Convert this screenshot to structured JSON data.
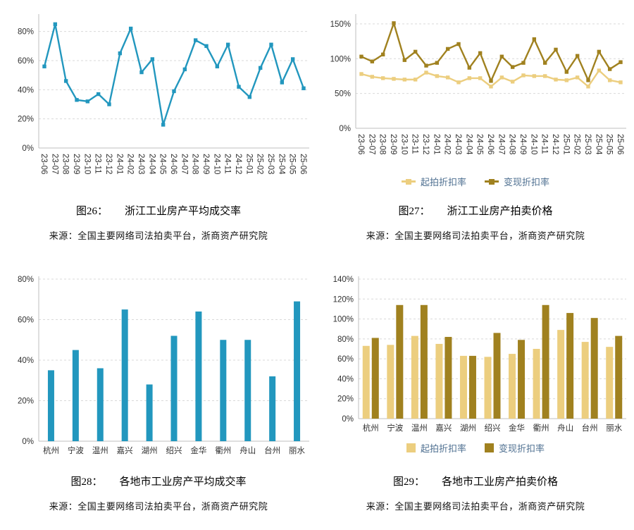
{
  "colors": {
    "teal": "#2297BE",
    "light_gold": "#ECCE7F",
    "dark_gold": "#A0811F",
    "grid_line": "#D9D9D9",
    "axis_line": "#BFBFBF",
    "tick_text": "#303030",
    "legend_text": "#4F7091"
  },
  "figures": [
    {
      "caption_prefix": "图26：",
      "caption_title": "浙江工业房产平均成交率",
      "source_prefix": "来源：",
      "source_text": "全国主要网络司法拍卖平台，浙商资产研究院"
    },
    {
      "caption_prefix": "图27：",
      "caption_title": "浙江工业房产拍卖价格",
      "source_prefix": "来源：",
      "source_text": "全国主要网络司法拍卖平台，浙商资产研究院"
    },
    {
      "caption_prefix": "图28：",
      "caption_title": "各地市工业房产平均成交率",
      "source_prefix": "来源：",
      "source_text": "全国主要网络司法拍卖平台，浙商资产研究院"
    },
    {
      "caption_prefix": "图29：",
      "caption_title": "各地市工业房产拍卖价格",
      "source_prefix": "来源：",
      "source_text": "全国主要网络司法拍卖平台，浙商资产研究院"
    }
  ],
  "chart_data": [
    {
      "type": "line",
      "title": "浙江工业房产平均成交率",
      "x": [
        "23-06",
        "23-07",
        "23-08",
        "23-09",
        "23-10",
        "23-11",
        "23-12",
        "24-01",
        "24-02",
        "24-03",
        "24-04",
        "24-05",
        "24-06",
        "24-07",
        "24-08",
        "24-09",
        "24-10",
        "24-11",
        "24-12",
        "25-01",
        "25-02",
        "25-03",
        "25-04",
        "25-05",
        "25-06"
      ],
      "ylim": [
        0,
        90
      ],
      "yticks": [
        0,
        20,
        40,
        60,
        80
      ],
      "grid": true,
      "legend": false,
      "series": [
        {
          "color": "#2297BE",
          "values": [
            56,
            85,
            46,
            33,
            32,
            37,
            30,
            65,
            82,
            52,
            61,
            16,
            39,
            54,
            74,
            70,
            56,
            71,
            42,
            35,
            55,
            71,
            45,
            61,
            41
          ]
        }
      ]
    },
    {
      "type": "line",
      "title": "浙江工业房产拍卖价格",
      "x": [
        "23-06",
        "23-07",
        "23-08",
        "23-09",
        "23-10",
        "23-11",
        "23-12",
        "24-01",
        "24-02",
        "24-03",
        "24-04",
        "24-05",
        "24-06",
        "24-07",
        "24-08",
        "24-09",
        "24-10",
        "24-11",
        "24-12",
        "25-01",
        "25-02",
        "25-03",
        "25-04",
        "25-05",
        "25-06"
      ],
      "ylim": [
        0,
        160
      ],
      "yticks": [
        0,
        50,
        100,
        150
      ],
      "grid": true,
      "legend": "bottom",
      "series": [
        {
          "name": "起拍折扣率",
          "color": "#ECCE7F",
          "values": [
            78,
            74,
            72,
            71,
            70,
            70,
            80,
            75,
            73,
            66,
            72,
            72,
            60,
            73,
            67,
            76,
            75,
            75,
            70,
            69,
            73,
            60,
            83,
            69,
            66
          ]
        },
        {
          "name": "变现折扣率",
          "color": "#A0811F",
          "values": [
            103,
            96,
            106,
            151,
            98,
            110,
            90,
            94,
            114,
            121,
            87,
            108,
            68,
            103,
            88,
            94,
            128,
            94,
            113,
            81,
            104,
            69,
            110,
            85,
            95
          ]
        }
      ]
    },
    {
      "type": "bar",
      "title": "各地市工业房产平均成交率",
      "categories": [
        "杭州",
        "宁波",
        "温州",
        "嘉兴",
        "湖州",
        "绍兴",
        "金华",
        "衢州",
        "舟山",
        "台州",
        "丽水"
      ],
      "ylim": [
        0,
        80
      ],
      "yticks": [
        0,
        20,
        40,
        60,
        80
      ],
      "grid": true,
      "legend": false,
      "series": [
        {
          "color": "#2297BE",
          "values": [
            35,
            45,
            36,
            65,
            28,
            52,
            64,
            50,
            50,
            32,
            69
          ]
        }
      ]
    },
    {
      "type": "bar",
      "title": "各地市工业房产拍卖价格",
      "categories": [
        "杭州",
        "宁波",
        "温州",
        "嘉兴",
        "湖州",
        "绍兴",
        "金华",
        "衢州",
        "舟山",
        "台州",
        "丽水"
      ],
      "ylim": [
        0,
        140
      ],
      "yticks": [
        0,
        20,
        40,
        60,
        80,
        100,
        120,
        140
      ],
      "grid": true,
      "legend": "bottom",
      "series": [
        {
          "name": "起拍折扣率",
          "color": "#ECCE7F",
          "values": [
            73,
            74,
            83,
            75,
            63,
            62,
            65,
            70,
            89,
            77,
            72
          ]
        },
        {
          "name": "变现折扣率",
          "color": "#A0811F",
          "values": [
            81,
            114,
            114,
            82,
            63,
            86,
            79,
            114,
            106,
            101,
            83
          ]
        }
      ]
    }
  ]
}
